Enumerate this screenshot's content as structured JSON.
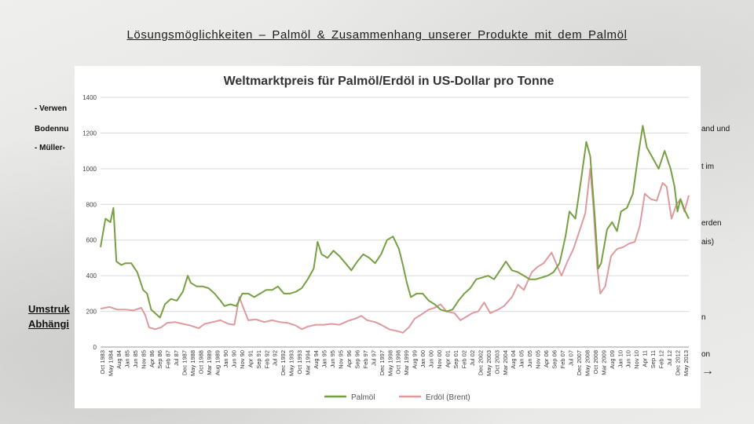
{
  "slide": {
    "title": "Lösungsmöglichkeiten – Palmöl & Zusammenhang unserer Produkte mit dem Palmöl",
    "left_fragments": [
      "- Verwen",
      "Bodennu",
      "- Müller-"
    ],
    "left_heading": [
      "Umstruk",
      "Abhängi"
    ],
    "right_fragments": [
      "and und",
      "t im",
      "erden",
      "ais)",
      "n",
      "on"
    ],
    "arrow": "→"
  },
  "chart_data": {
    "type": "line",
    "title": "Weltmarktpreis für Palmöl/Erdöl in US-Dollar pro Tonne",
    "xlabel": "",
    "ylabel": "",
    "ylim": [
      0,
      1400
    ],
    "yticks": [
      "0",
      "200",
      "400",
      "600",
      "800",
      "1000",
      "1200",
      "1400"
    ],
    "grid": true,
    "legend_position": "bottom",
    "x_tick_labels": [
      "Oct 1983",
      "May 1984",
      "Aug 84",
      "Jan 85",
      "Jun 85",
      "Nov 85",
      "Apr 86",
      "Sep 86",
      "Feb 87",
      "Jul 87",
      "Dec 1987",
      "May 1988",
      "Oct 1988",
      "Mar 1989",
      "Aug 1989",
      "Jan 90",
      "Jun 90",
      "Nov 90",
      "Apr 91",
      "Sep 91",
      "Feb 92",
      "Jul 92",
      "Dec 1992",
      "May 1993",
      "Oct 1993",
      "Mar 1994",
      "Aug 94",
      "Jan 95",
      "Jun 95",
      "Nov 95",
      "Apr 96",
      "Sep 96",
      "Feb 97",
      "Jul 97",
      "Dec 1997",
      "May 1998",
      "Oct 1998",
      "Mar 1999",
      "Aug 99",
      "Jan 00",
      "Jun 00",
      "Nov 00",
      "Apr 01",
      "Sep 01",
      "Feb 02",
      "Jul 02",
      "Dec 2002",
      "May 2003",
      "Oct 2003",
      "Mar 2004",
      "Aug 04",
      "Jan 05",
      "Jun 05",
      "Nov 05",
      "Apr 06",
      "Sep 06",
      "Feb 07",
      "Jul 07",
      "Dec 2007",
      "May 2008",
      "Oct 2008",
      "Mar 2009",
      "Aug 09",
      "Jan 10",
      "Jun 10",
      "Nov 10",
      "Apr 11",
      "Sep 11",
      "Feb 12",
      "Jul 12",
      "Dec 2012",
      "May 2013"
    ],
    "series": [
      {
        "name": "Palmöl",
        "color": "#77a043",
        "points": [
          [
            1983.75,
            560
          ],
          [
            1984.0,
            720
          ],
          [
            1984.25,
            700
          ],
          [
            1984.4,
            780
          ],
          [
            1984.55,
            480
          ],
          [
            1984.8,
            460
          ],
          [
            1985.0,
            470
          ],
          [
            1985.3,
            470
          ],
          [
            1985.6,
            420
          ],
          [
            1985.9,
            320
          ],
          [
            1986.1,
            300
          ],
          [
            1986.3,
            210
          ],
          [
            1986.5,
            190
          ],
          [
            1986.75,
            165
          ],
          [
            1987.0,
            240
          ],
          [
            1987.3,
            270
          ],
          [
            1987.6,
            260
          ],
          [
            1987.9,
            310
          ],
          [
            1988.15,
            400
          ],
          [
            1988.3,
            360
          ],
          [
            1988.6,
            340
          ],
          [
            1988.9,
            340
          ],
          [
            1989.2,
            330
          ],
          [
            1989.5,
            300
          ],
          [
            1989.8,
            260
          ],
          [
            1990.0,
            230
          ],
          [
            1990.3,
            240
          ],
          [
            1990.6,
            230
          ],
          [
            1990.9,
            300
          ],
          [
            1991.2,
            300
          ],
          [
            1991.5,
            280
          ],
          [
            1991.8,
            300
          ],
          [
            1992.1,
            320
          ],
          [
            1992.4,
            320
          ],
          [
            1992.7,
            340
          ],
          [
            1993.0,
            300
          ],
          [
            1993.3,
            300
          ],
          [
            1993.6,
            310
          ],
          [
            1993.9,
            330
          ],
          [
            1994.2,
            380
          ],
          [
            1994.5,
            440
          ],
          [
            1994.7,
            590
          ],
          [
            1994.9,
            520
          ],
          [
            1995.2,
            500
          ],
          [
            1995.5,
            540
          ],
          [
            1995.8,
            510
          ],
          [
            1996.1,
            470
          ],
          [
            1996.4,
            430
          ],
          [
            1996.7,
            480
          ],
          [
            1997.0,
            520
          ],
          [
            1997.3,
            500
          ],
          [
            1997.6,
            470
          ],
          [
            1997.9,
            520
          ],
          [
            1998.2,
            600
          ],
          [
            1998.5,
            620
          ],
          [
            1998.8,
            550
          ],
          [
            1999.0,
            460
          ],
          [
            1999.2,
            360
          ],
          [
            1999.4,
            280
          ],
          [
            1999.7,
            300
          ],
          [
            2000.0,
            300
          ],
          [
            2000.3,
            260
          ],
          [
            2000.6,
            240
          ],
          [
            2000.9,
            210
          ],
          [
            2001.2,
            200
          ],
          [
            2001.5,
            210
          ],
          [
            2001.8,
            260
          ],
          [
            2002.1,
            300
          ],
          [
            2002.4,
            330
          ],
          [
            2002.7,
            380
          ],
          [
            2003.0,
            390
          ],
          [
            2003.3,
            400
          ],
          [
            2003.6,
            380
          ],
          [
            2003.9,
            430
          ],
          [
            2004.2,
            480
          ],
          [
            2004.5,
            430
          ],
          [
            2004.8,
            420
          ],
          [
            2005.1,
            400
          ],
          [
            2005.4,
            380
          ],
          [
            2005.7,
            380
          ],
          [
            2006.0,
            390
          ],
          [
            2006.3,
            400
          ],
          [
            2006.6,
            420
          ],
          [
            2006.9,
            470
          ],
          [
            2007.2,
            620
          ],
          [
            2007.4,
            760
          ],
          [
            2007.7,
            720
          ],
          [
            2008.0,
            950
          ],
          [
            2008.25,
            1150
          ],
          [
            2008.45,
            1070
          ],
          [
            2008.7,
            700
          ],
          [
            2008.85,
            440
          ],
          [
            2009.0,
            470
          ],
          [
            2009.3,
            660
          ],
          [
            2009.55,
            700
          ],
          [
            2009.8,
            650
          ],
          [
            2010.0,
            760
          ],
          [
            2010.3,
            780
          ],
          [
            2010.6,
            860
          ],
          [
            2010.9,
            1100
          ],
          [
            2011.1,
            1240
          ],
          [
            2011.3,
            1120
          ],
          [
            2011.6,
            1060
          ],
          [
            2011.9,
            1000
          ],
          [
            2012.2,
            1100
          ],
          [
            2012.5,
            1000
          ],
          [
            2012.7,
            900
          ],
          [
            2012.85,
            760
          ],
          [
            2013.0,
            830
          ],
          [
            2013.2,
            770
          ],
          [
            2013.42,
            720
          ]
        ]
      },
      {
        "name": "Erdöl (Brent)",
        "color": "#df9a9e",
        "points": [
          [
            1983.75,
            215
          ],
          [
            1984.2,
            225
          ],
          [
            1984.6,
            210
          ],
          [
            1985.0,
            210
          ],
          [
            1985.4,
            205
          ],
          [
            1985.8,
            220
          ],
          [
            1986.0,
            180
          ],
          [
            1986.2,
            110
          ],
          [
            1986.5,
            100
          ],
          [
            1986.8,
            110
          ],
          [
            1987.1,
            135
          ],
          [
            1987.5,
            140
          ],
          [
            1987.9,
            130
          ],
          [
            1988.3,
            120
          ],
          [
            1988.7,
            105
          ],
          [
            1989.0,
            130
          ],
          [
            1989.4,
            140
          ],
          [
            1989.8,
            150
          ],
          [
            1990.2,
            130
          ],
          [
            1990.5,
            125
          ],
          [
            1990.75,
            280
          ],
          [
            1990.95,
            220
          ],
          [
            1991.2,
            150
          ],
          [
            1991.6,
            155
          ],
          [
            1992.0,
            140
          ],
          [
            1992.4,
            150
          ],
          [
            1992.8,
            140
          ],
          [
            1993.2,
            135
          ],
          [
            1993.6,
            120
          ],
          [
            1993.9,
            100
          ],
          [
            1994.2,
            115
          ],
          [
            1994.6,
            125
          ],
          [
            1995.0,
            125
          ],
          [
            1995.4,
            130
          ],
          [
            1995.8,
            125
          ],
          [
            1996.2,
            145
          ],
          [
            1996.6,
            160
          ],
          [
            1996.9,
            175
          ],
          [
            1997.2,
            150
          ],
          [
            1997.6,
            140
          ],
          [
            1997.9,
            125
          ],
          [
            1998.3,
            100
          ],
          [
            1998.7,
            90
          ],
          [
            1999.0,
            80
          ],
          [
            1999.3,
            110
          ],
          [
            1999.6,
            160
          ],
          [
            1999.9,
            180
          ],
          [
            2000.3,
            210
          ],
          [
            2000.6,
            220
          ],
          [
            2000.9,
            240
          ],
          [
            2001.2,
            200
          ],
          [
            2001.6,
            190
          ],
          [
            2001.9,
            150
          ],
          [
            2002.2,
            170
          ],
          [
            2002.5,
            190
          ],
          [
            2002.8,
            200
          ],
          [
            2003.1,
            250
          ],
          [
            2003.4,
            190
          ],
          [
            2003.8,
            210
          ],
          [
            2004.1,
            230
          ],
          [
            2004.5,
            280
          ],
          [
            2004.8,
            350
          ],
          [
            2005.1,
            320
          ],
          [
            2005.5,
            420
          ],
          [
            2005.8,
            450
          ],
          [
            2006.1,
            470
          ],
          [
            2006.5,
            530
          ],
          [
            2006.8,
            450
          ],
          [
            2007.0,
            400
          ],
          [
            2007.3,
            480
          ],
          [
            2007.6,
            550
          ],
          [
            2007.9,
            650
          ],
          [
            2008.2,
            750
          ],
          [
            2008.45,
            1000
          ],
          [
            2008.6,
            800
          ],
          [
            2008.8,
            450
          ],
          [
            2008.95,
            300
          ],
          [
            2009.2,
            340
          ],
          [
            2009.5,
            510
          ],
          [
            2009.8,
            550
          ],
          [
            2010.1,
            560
          ],
          [
            2010.4,
            580
          ],
          [
            2010.7,
            590
          ],
          [
            2010.95,
            680
          ],
          [
            2011.2,
            860
          ],
          [
            2011.5,
            830
          ],
          [
            2011.8,
            820
          ],
          [
            2012.1,
            920
          ],
          [
            2012.3,
            900
          ],
          [
            2012.55,
            720
          ],
          [
            2012.8,
            800
          ],
          [
            2013.0,
            830
          ],
          [
            2013.2,
            760
          ],
          [
            2013.42,
            850
          ]
        ]
      }
    ]
  }
}
